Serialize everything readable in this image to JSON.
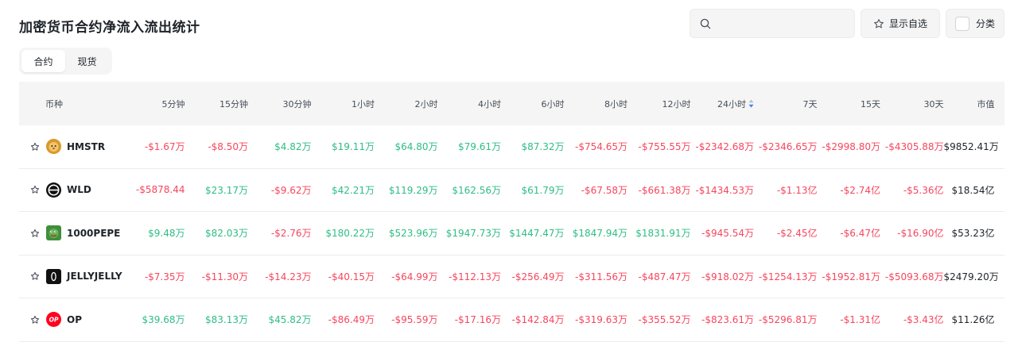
{
  "title": "加密货币合约净流入流出统计",
  "search": {
    "placeholder": "",
    "icon": "search-icon"
  },
  "fav_button": {
    "label": "显示自选",
    "icon": "star-outline-icon"
  },
  "category_button": {
    "label": "分类"
  },
  "tabs": [
    {
      "label": "合约",
      "active": true
    },
    {
      "label": "现货",
      "active": false
    }
  ],
  "colors": {
    "positive": "#2ebd85",
    "negative": "#f6465d",
    "header_bg": "#f5f5f5",
    "sort_active": "#3b82f6"
  },
  "table": {
    "headers": [
      "币种",
      "5分钟",
      "15分钟",
      "30分钟",
      "1小时",
      "2小时",
      "4小时",
      "6小时",
      "8小时",
      "12小时",
      "24小时",
      "7天",
      "15天",
      "30天",
      "市值"
    ],
    "sorted_column": "24小时",
    "rows": [
      {
        "coin": "HMSTR",
        "logo": "hamster-logo",
        "values": [
          "-$1.67万",
          "-$8.50万",
          "$4.82万",
          "$19.11万",
          "$64.80万",
          "$79.61万",
          "$87.32万",
          "-$754.65万",
          "-$755.55万",
          "-$2342.68万",
          "-$2346.65万",
          "-$2998.80万",
          "-$4305.88万"
        ],
        "market_cap": "$9852.41万"
      },
      {
        "coin": "WLD",
        "logo": "worldcoin-logo",
        "values": [
          "-$5878.44",
          "$23.17万",
          "-$9.62万",
          "$42.21万",
          "$119.29万",
          "$162.56万",
          "$61.79万",
          "-$67.58万",
          "-$661.38万",
          "-$1434.53万",
          "-$1.13亿",
          "-$2.74亿",
          "-$5.36亿"
        ],
        "market_cap": "$18.54亿"
      },
      {
        "coin": "1000PEPE",
        "logo": "pepe-logo",
        "values": [
          "$9.48万",
          "$82.03万",
          "-$2.76万",
          "$180.22万",
          "$523.96万",
          "$1947.73万",
          "$1447.47万",
          "$1847.94万",
          "$1831.91万",
          "-$945.54万",
          "-$2.45亿",
          "-$6.47亿",
          "-$16.90亿"
        ],
        "market_cap": "$53.23亿"
      },
      {
        "coin": "JELLYJELLY",
        "logo": "jellyjelly-logo",
        "values": [
          "-$7.35万",
          "-$11.30万",
          "-$14.23万",
          "-$40.15万",
          "-$64.99万",
          "-$112.13万",
          "-$256.49万",
          "-$311.56万",
          "-$487.47万",
          "-$918.02万",
          "-$1254.13万",
          "-$1952.81万",
          "-$5093.68万"
        ],
        "market_cap": "$2479.20万"
      },
      {
        "coin": "OP",
        "logo": "optimism-logo",
        "values": [
          "$39.68万",
          "$83.13万",
          "$45.82万",
          "-$86.49万",
          "-$95.59万",
          "-$17.16万",
          "-$142.84万",
          "-$319.63万",
          "-$355.52万",
          "-$823.61万",
          "-$5296.81万",
          "-$1.31亿",
          "-$3.43亿"
        ],
        "market_cap": "$11.26亿"
      }
    ]
  }
}
